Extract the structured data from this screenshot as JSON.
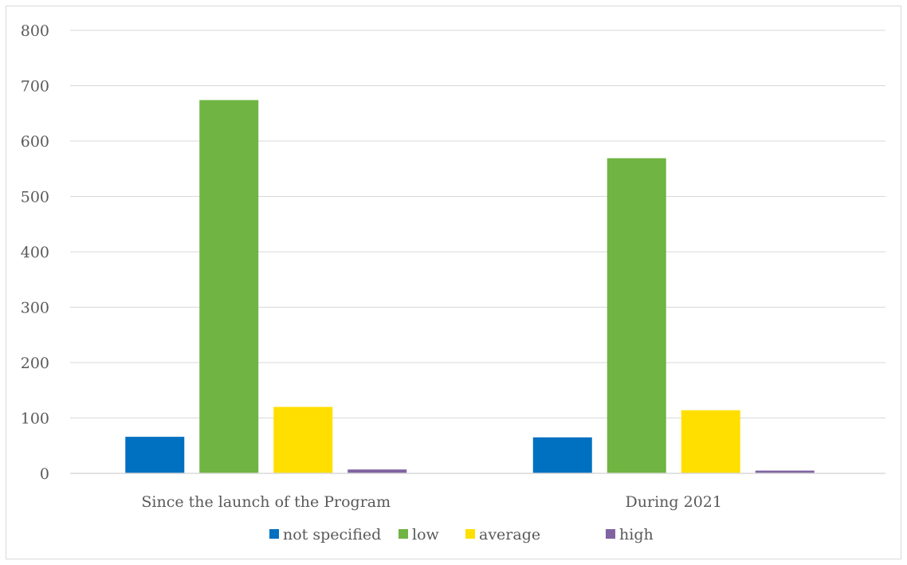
{
  "chart_data": {
    "type": "bar",
    "categories": [
      "Since the launch of the Program",
      "During 2021"
    ],
    "series": [
      {
        "name": "not specified",
        "color": "#0070c0",
        "values": [
          66,
          65
        ]
      },
      {
        "name": "low",
        "color": "#70b443",
        "values": [
          674,
          569
        ]
      },
      {
        "name": "average",
        "color": "#ffdf00",
        "values": [
          120,
          114
        ]
      },
      {
        "name": "high",
        "color": "#8064a2",
        "values": [
          7,
          5
        ]
      }
    ],
    "series_colors_note": "",
    "title": "",
    "xlabel": "",
    "ylabel": "",
    "ylim": [
      0,
      800
    ],
    "yticks": [
      0,
      100,
      200,
      300,
      400,
      500,
      600,
      700,
      800
    ],
    "grid": true,
    "legend_position": "bottom"
  }
}
